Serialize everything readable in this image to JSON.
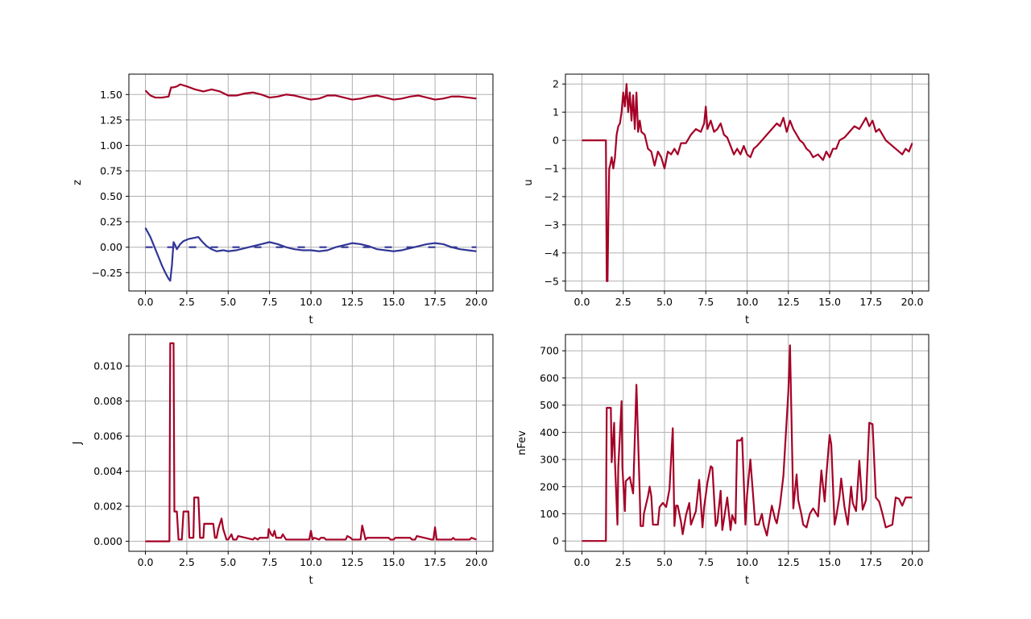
{
  "colors": {
    "primary": "#a50026",
    "secondary": "#313695",
    "grid": "#b0b0b0"
  },
  "chart_data": [
    {
      "id": "z",
      "type": "line",
      "xlabel": "t",
      "ylabel": "z",
      "xlim": [
        -1.0,
        21.0
      ],
      "ylim": [
        -0.43,
        1.7
      ],
      "xticks": [
        0.0,
        2.5,
        5.0,
        7.5,
        10.0,
        12.5,
        15.0,
        17.5,
        20.0
      ],
      "xtick_labels": [
        "0.0",
        "2.5",
        "5.0",
        "7.5",
        "10.0",
        "12.5",
        "15.0",
        "17.5",
        "20.0"
      ],
      "yticks": [
        -0.25,
        0.0,
        0.25,
        0.5,
        0.75,
        1.0,
        1.25,
        1.5
      ],
      "ytick_labels": [
        "−0.25",
        "0.00",
        "0.25",
        "0.50",
        "0.75",
        "1.00",
        "1.25",
        "1.50"
      ],
      "grid": true,
      "series": [
        {
          "color": "#a50026",
          "style": "solid",
          "x": [
            0.0,
            0.3,
            0.6,
            1.0,
            1.4,
            1.55,
            1.7,
            1.9,
            2.1,
            2.5,
            3.0,
            3.5,
            4.0,
            4.5,
            5.0,
            5.5,
            6.0,
            6.5,
            7.0,
            7.5,
            8.0,
            8.5,
            9.0,
            9.5,
            10.0,
            10.5,
            11.0,
            11.5,
            12.0,
            12.5,
            13.0,
            13.5,
            14.0,
            14.5,
            15.0,
            15.5,
            16.0,
            16.5,
            17.0,
            17.5,
            18.0,
            18.5,
            19.0,
            19.5,
            20.0
          ],
          "y": [
            1.54,
            1.49,
            1.47,
            1.47,
            1.48,
            1.57,
            1.57,
            1.58,
            1.6,
            1.58,
            1.55,
            1.53,
            1.55,
            1.53,
            1.49,
            1.49,
            1.51,
            1.52,
            1.5,
            1.47,
            1.48,
            1.5,
            1.49,
            1.47,
            1.45,
            1.46,
            1.49,
            1.49,
            1.47,
            1.45,
            1.46,
            1.48,
            1.49,
            1.47,
            1.45,
            1.46,
            1.48,
            1.49,
            1.47,
            1.45,
            1.46,
            1.48,
            1.48,
            1.47,
            1.46
          ]
        },
        {
          "color": "#313695",
          "style": "solid",
          "x": [
            0.0,
            0.3,
            0.7,
            1.0,
            1.2,
            1.4,
            1.5,
            1.6,
            1.7,
            1.8,
            1.9,
            2.1,
            2.3,
            2.6,
            2.9,
            3.2,
            3.4,
            3.7,
            4.0,
            4.3,
            4.7,
            5.0,
            5.5,
            6.0,
            6.5,
            7.0,
            7.5,
            8.0,
            8.5,
            9.0,
            9.5,
            10.0,
            10.5,
            11.0,
            11.5,
            12.0,
            12.5,
            13.0,
            13.5,
            14.0,
            14.5,
            15.0,
            15.5,
            16.0,
            16.5,
            17.0,
            17.5,
            18.0,
            18.5,
            19.0,
            19.5,
            20.0
          ],
          "y": [
            0.19,
            0.1,
            -0.06,
            -0.18,
            -0.25,
            -0.31,
            -0.33,
            -0.18,
            0.05,
            0.02,
            -0.02,
            0.03,
            0.06,
            0.08,
            0.09,
            0.1,
            0.06,
            0.01,
            -0.02,
            -0.04,
            -0.03,
            -0.04,
            -0.03,
            -0.01,
            0.01,
            0.03,
            0.05,
            0.03,
            0.0,
            -0.02,
            -0.03,
            -0.03,
            -0.04,
            -0.03,
            0.0,
            0.02,
            0.04,
            0.03,
            0.01,
            -0.02,
            -0.03,
            -0.04,
            -0.03,
            -0.01,
            0.01,
            0.03,
            0.04,
            0.03,
            0.0,
            -0.02,
            -0.03,
            -0.04
          ]
        },
        {
          "color": "#313695",
          "style": "dashed",
          "x": [
            0.0,
            20.0
          ],
          "y": [
            0.0,
            0.0
          ]
        }
      ]
    },
    {
      "id": "u",
      "type": "line",
      "xlabel": "t",
      "ylabel": "u",
      "xlim": [
        -1.0,
        21.0
      ],
      "ylim": [
        -5.35,
        2.35
      ],
      "xticks": [
        0.0,
        2.5,
        5.0,
        7.5,
        10.0,
        12.5,
        15.0,
        17.5,
        20.0
      ],
      "xtick_labels": [
        "0.0",
        "2.5",
        "5.0",
        "7.5",
        "10.0",
        "12.5",
        "15.0",
        "17.5",
        "20.0"
      ],
      "yticks": [
        -5,
        -4,
        -3,
        -2,
        -1,
        0,
        1,
        2
      ],
      "ytick_labels": [
        "−5",
        "−4",
        "−3",
        "−2",
        "−1",
        "0",
        "1",
        "2"
      ],
      "grid": true,
      "series": [
        {
          "color": "#a50026",
          "style": "solid",
          "x": [
            0.0,
            1.4,
            1.45,
            1.5,
            1.55,
            1.6,
            1.65,
            1.7,
            1.8,
            1.9,
            2.0,
            2.1,
            2.2,
            2.3,
            2.4,
            2.5,
            2.6,
            2.7,
            2.8,
            2.9,
            3.0,
            3.1,
            3.2,
            3.3,
            3.4,
            3.5,
            3.6,
            3.8,
            4.0,
            4.2,
            4.4,
            4.6,
            4.8,
            5.0,
            5.2,
            5.4,
            5.6,
            5.8,
            6.0,
            6.3,
            6.6,
            6.9,
            7.2,
            7.4,
            7.5,
            7.6,
            7.8,
            8.0,
            8.2,
            8.4,
            8.6,
            8.8,
            9.0,
            9.2,
            9.4,
            9.6,
            9.8,
            10.0,
            10.2,
            10.4,
            10.6,
            10.9,
            11.2,
            11.5,
            11.8,
            12.0,
            12.2,
            12.4,
            12.6,
            12.8,
            13.0,
            13.2,
            13.4,
            13.6,
            13.8,
            14.0,
            14.3,
            14.6,
            14.8,
            15.0,
            15.2,
            15.4,
            15.6,
            15.9,
            16.2,
            16.5,
            16.8,
            17.0,
            17.2,
            17.4,
            17.6,
            17.8,
            18.0,
            18.2,
            18.4,
            18.6,
            18.8,
            19.0,
            19.2,
            19.4,
            19.6,
            19.8,
            20.0
          ],
          "y": [
            0.0,
            0.0,
            0.0,
            -5.0,
            -5.0,
            -2.7,
            -1.0,
            -0.9,
            -0.6,
            -1.0,
            -0.6,
            0.2,
            0.5,
            0.6,
            1.0,
            1.7,
            1.2,
            2.0,
            1.0,
            1.7,
            0.7,
            1.6,
            0.4,
            1.7,
            0.3,
            0.7,
            0.3,
            0.2,
            -0.3,
            -0.4,
            -0.9,
            -0.4,
            -0.6,
            -1.0,
            -0.4,
            -0.5,
            -0.3,
            -0.5,
            -0.1,
            -0.1,
            0.2,
            0.4,
            0.3,
            0.6,
            1.2,
            0.4,
            0.7,
            0.3,
            0.4,
            0.6,
            0.2,
            0.1,
            -0.2,
            -0.5,
            -0.3,
            -0.5,
            -0.2,
            -0.5,
            -0.6,
            -0.3,
            -0.2,
            0.0,
            0.2,
            0.4,
            0.6,
            0.5,
            0.8,
            0.3,
            0.7,
            0.4,
            0.2,
            0.0,
            -0.1,
            -0.3,
            -0.4,
            -0.6,
            -0.5,
            -0.7,
            -0.4,
            -0.6,
            -0.3,
            -0.3,
            0.0,
            0.1,
            0.3,
            0.5,
            0.4,
            0.6,
            0.8,
            0.5,
            0.7,
            0.3,
            0.4,
            0.2,
            0.0,
            -0.1,
            -0.2,
            -0.3,
            -0.4,
            -0.5,
            -0.3,
            -0.4,
            -0.1
          ]
        }
      ]
    },
    {
      "id": "J",
      "type": "line",
      "xlabel": "t",
      "ylabel": "J",
      "xlim": [
        -1.0,
        21.0
      ],
      "ylim": [
        -0.00057,
        0.0118
      ],
      "xticks": [
        0.0,
        2.5,
        5.0,
        7.5,
        10.0,
        12.5,
        15.0,
        17.5,
        20.0
      ],
      "xtick_labels": [
        "0.0",
        "2.5",
        "5.0",
        "7.5",
        "10.0",
        "12.5",
        "15.0",
        "17.5",
        "20.0"
      ],
      "yticks": [
        0.0,
        0.002,
        0.004,
        0.006,
        0.008,
        0.01
      ],
      "ytick_labels": [
        "0.000",
        "0.002",
        "0.004",
        "0.006",
        "0.008",
        "0.010"
      ],
      "grid": true,
      "series": [
        {
          "color": "#a50026",
          "style": "solid",
          "x": [
            0.0,
            1.45,
            1.5,
            1.7,
            1.75,
            1.9,
            2.0,
            2.2,
            2.3,
            2.6,
            2.65,
            2.9,
            2.95,
            3.2,
            3.3,
            3.5,
            3.55,
            4.1,
            4.2,
            4.3,
            4.4,
            4.6,
            4.7,
            4.9,
            5.0,
            5.2,
            5.3,
            5.5,
            5.6,
            6.5,
            6.6,
            6.8,
            6.9,
            7.4,
            7.45,
            7.6,
            7.7,
            7.8,
            7.9,
            8.2,
            8.3,
            8.5,
            8.6,
            9.9,
            10.0,
            10.1,
            10.2,
            10.5,
            10.6,
            10.8,
            10.9,
            12.1,
            12.2,
            12.4,
            12.5,
            13.0,
            13.1,
            13.3,
            13.4,
            14.7,
            14.8,
            15.0,
            15.1,
            16.0,
            16.1,
            16.3,
            16.4,
            17.3,
            17.4,
            17.5,
            17.6,
            18.5,
            18.6,
            18.7,
            18.8,
            19.6,
            19.7,
            20.0
          ],
          "y": [
            0.0,
            0.0,
            0.0113,
            0.0113,
            0.0017,
            0.0017,
            0.0001,
            0.0001,
            0.0017,
            0.0017,
            0.0002,
            0.0002,
            0.0025,
            0.0025,
            0.0002,
            0.0002,
            0.001,
            0.001,
            0.0002,
            0.0002,
            0.0007,
            0.0013,
            0.0007,
            0.0001,
            0.0001,
            0.0004,
            0.0001,
            0.0001,
            0.0003,
            0.0001,
            0.0002,
            0.0001,
            0.0002,
            0.0002,
            0.0007,
            0.0004,
            0.0003,
            0.0006,
            0.0002,
            0.0002,
            0.0004,
            0.0001,
            0.0001,
            0.0001,
            0.0006,
            0.0001,
            0.0002,
            0.0001,
            0.0002,
            0.0002,
            0.0001,
            0.0001,
            0.0003,
            0.0002,
            0.0001,
            0.0001,
            0.0009,
            0.0001,
            0.0002,
            0.0002,
            0.0001,
            0.0001,
            0.0002,
            0.0002,
            0.0001,
            0.0001,
            0.0003,
            0.0001,
            0.0001,
            0.0008,
            0.0001,
            0.0001,
            0.0002,
            0.0001,
            0.0001,
            0.0001,
            0.0002,
            0.0001
          ]
        }
      ]
    },
    {
      "id": "nFev",
      "type": "line",
      "xlabel": "t",
      "ylabel": "nFev",
      "xlim": [
        -1.0,
        21.0
      ],
      "ylim": [
        -38,
        760
      ],
      "xticks": [
        0.0,
        2.5,
        5.0,
        7.5,
        10.0,
        12.5,
        15.0,
        17.5,
        20.0
      ],
      "xtick_labels": [
        "0.0",
        "2.5",
        "5.0",
        "7.5",
        "10.0",
        "12.5",
        "15.0",
        "17.5",
        "20.0"
      ],
      "yticks": [
        0,
        100,
        200,
        300,
        400,
        500,
        600,
        700
      ],
      "ytick_labels": [
        "0",
        "100",
        "200",
        "300",
        "400",
        "500",
        "600",
        "700"
      ],
      "grid": true,
      "series": [
        {
          "color": "#a50026",
          "style": "solid",
          "x": [
            0.0,
            1.45,
            1.5,
            1.75,
            1.8,
            1.95,
            2.0,
            2.15,
            2.2,
            2.4,
            2.45,
            2.6,
            2.65,
            2.9,
            3.1,
            3.3,
            3.5,
            3.55,
            3.7,
            3.75,
            4.0,
            4.1,
            4.2,
            4.3,
            4.6,
            4.7,
            4.9,
            5.1,
            5.3,
            5.5,
            5.6,
            5.7,
            5.8,
            6.0,
            6.1,
            6.3,
            6.5,
            6.6,
            6.9,
            7.1,
            7.3,
            7.4,
            7.6,
            7.8,
            7.9,
            8.1,
            8.2,
            8.4,
            8.5,
            8.7,
            8.8,
            9.0,
            9.1,
            9.3,
            9.4,
            9.6,
            9.7,
            9.9,
            10.0,
            10.2,
            10.3,
            10.5,
            10.7,
            10.9,
            11.0,
            11.2,
            11.5,
            11.7,
            11.8,
            12.0,
            12.2,
            12.5,
            12.6,
            12.8,
            13.0,
            13.1,
            13.3,
            13.4,
            13.6,
            13.8,
            14.0,
            14.3,
            14.5,
            14.7,
            14.8,
            15.0,
            15.1,
            15.3,
            15.4,
            15.6,
            15.7,
            15.9,
            16.1,
            16.3,
            16.4,
            16.6,
            16.8,
            17.0,
            17.2,
            17.4,
            17.6,
            17.8,
            18.0,
            18.2,
            18.4,
            18.6,
            18.8,
            19.0,
            19.2,
            19.4,
            19.6,
            19.8,
            20.0
          ],
          "y": [
            0,
            0,
            490,
            490,
            290,
            435,
            290,
            60,
            270,
            515,
            270,
            110,
            220,
            235,
            175,
            575,
            175,
            55,
            55,
            100,
            165,
            200,
            165,
            60,
            60,
            125,
            140,
            125,
            190,
            415,
            55,
            130,
            130,
            70,
            25,
            95,
            140,
            60,
            110,
            225,
            50,
            125,
            215,
            275,
            270,
            55,
            70,
            185,
            40,
            120,
            160,
            40,
            95,
            65,
            370,
            370,
            380,
            60,
            170,
            300,
            220,
            60,
            60,
            100,
            60,
            20,
            130,
            80,
            65,
            135,
            240,
            550,
            720,
            120,
            245,
            150,
            95,
            60,
            50,
            100,
            120,
            90,
            260,
            145,
            240,
            390,
            355,
            60,
            90,
            165,
            230,
            125,
            60,
            200,
            140,
            110,
            295,
            115,
            150,
            435,
            430,
            160,
            145,
            100,
            50,
            55,
            60,
            160,
            155,
            130,
            160,
            160,
            160
          ]
        }
      ]
    }
  ]
}
